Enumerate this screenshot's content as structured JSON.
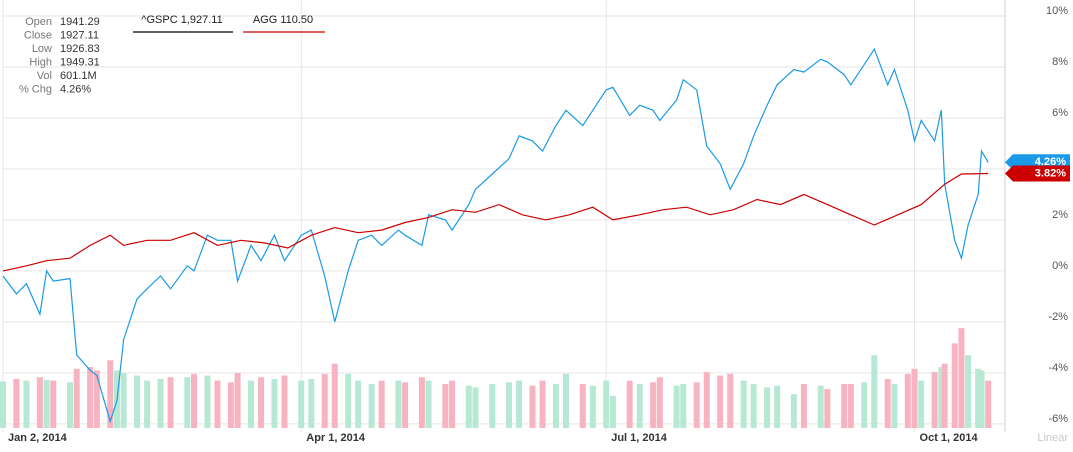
{
  "chart_data": {
    "type": "line",
    "info": [
      {
        "label": "Open",
        "value": "1941.29"
      },
      {
        "label": "Close",
        "value": "1927.11"
      },
      {
        "label": "Low",
        "value": "1926.83"
      },
      {
        "label": "High",
        "value": "1949.31"
      },
      {
        "label": "Vol",
        "value": "601.1M"
      },
      {
        "label": "% Chg",
        "value": "4.26%"
      }
    ],
    "scale_label": "Linear",
    "xlim": [
      "2014-01-02",
      "2014-10-28"
    ],
    "xticks": [
      {
        "value": "2014-01-02",
        "label": "Jan 2, 2014"
      },
      {
        "value": "2014-04-01",
        "label": "Apr 1, 2014"
      },
      {
        "value": "2014-07-01",
        "label": "Jul 1, 2014"
      },
      {
        "value": "2014-10-01",
        "label": "Oct 1, 2014"
      }
    ],
    "ylim": [
      -6.24,
      10.43
    ],
    "yticks": [
      {
        "value": 10,
        "label": "10%"
      },
      {
        "value": 8,
        "label": "8%"
      },
      {
        "value": 6,
        "label": "6%"
      },
      {
        "value": 4,
        "label": "4%"
      },
      {
        "value": 2,
        "label": "2%"
      },
      {
        "value": 0,
        "label": "0%"
      },
      {
        "value": -2,
        "label": "-2%"
      },
      {
        "value": -4,
        "label": "-4%"
      },
      {
        "value": -6,
        "label": "-6%"
      }
    ],
    "grid": true,
    "series": [
      {
        "name": "^GSPC 1,927.11",
        "color": "#1a9ae6",
        "legend_color": "#000000",
        "end_label": "4.26%",
        "x": [
          "2014-01-02",
          "2014-01-06",
          "2014-01-09",
          "2014-01-13",
          "2014-01-15",
          "2014-01-17",
          "2014-01-22",
          "2014-01-24",
          "2014-01-28",
          "2014-01-30",
          "2014-02-03",
          "2014-02-05",
          "2014-02-07",
          "2014-02-11",
          "2014-02-14",
          "2014-02-18",
          "2014-02-21",
          "2014-02-26",
          "2014-02-28",
          "2014-03-04",
          "2014-03-07",
          "2014-03-11",
          "2014-03-13",
          "2014-03-17",
          "2014-03-20",
          "2014-03-24",
          "2014-03-27",
          "2014-04-01",
          "2014-04-04",
          "2014-04-08",
          "2014-04-11",
          "2014-04-15",
          "2014-04-18",
          "2014-04-22",
          "2014-04-25",
          "2014-04-30",
          "2014-05-02",
          "2014-05-07",
          "2014-05-09",
          "2014-05-14",
          "2014-05-16",
          "2014-05-21",
          "2014-05-23",
          "2014-05-28",
          "2014-06-02",
          "2014-06-05",
          "2014-06-09",
          "2014-06-12",
          "2014-06-16",
          "2014-06-19",
          "2014-06-24",
          "2014-06-27",
          "2014-07-01",
          "2014-07-03",
          "2014-07-08",
          "2014-07-11",
          "2014-07-15",
          "2014-07-17",
          "2014-07-22",
          "2014-07-24",
          "2014-07-28",
          "2014-07-31",
          "2014-08-04",
          "2014-08-07",
          "2014-08-11",
          "2014-08-14",
          "2014-08-18",
          "2014-08-21",
          "2014-08-26",
          "2014-08-29",
          "2014-09-03",
          "2014-09-05",
          "2014-09-10",
          "2014-09-12",
          "2014-09-16",
          "2014-09-19",
          "2014-09-23",
          "2014-09-25",
          "2014-09-29",
          "2014-10-01",
          "2014-10-03",
          "2014-10-07",
          "2014-10-09",
          "2014-10-10",
          "2014-10-13",
          "2014-10-15",
          "2014-10-17",
          "2014-10-20",
          "2014-10-21",
          "2014-10-23"
        ],
        "values": [
          -0.2,
          -0.9,
          -0.5,
          -1.7,
          0,
          -0.4,
          -0.3,
          -3.3,
          -3.9,
          -4.1,
          -5.9,
          -5.1,
          -2.7,
          -1.1,
          -0.7,
          -0.2,
          -0.7,
          0.2,
          0,
          1.4,
          1.2,
          1.2,
          -0.4,
          1.0,
          0.4,
          1.4,
          0.4,
          1.4,
          1.6,
          -0.2,
          -2.0,
          0,
          1.2,
          1.4,
          1.0,
          1.6,
          1.4,
          1.0,
          2.2,
          2.0,
          1.6,
          2.6,
          3.2,
          3.8,
          4.4,
          5.3,
          5.1,
          4.7,
          5.7,
          6.3,
          5.7,
          6.3,
          7.1,
          7.2,
          6.1,
          6.5,
          6.3,
          5.9,
          6.7,
          7.5,
          7.1,
          4.9,
          4.2,
          3.2,
          4.2,
          5.3,
          6.5,
          7.3,
          7.9,
          7.8,
          8.3,
          8.2,
          7.7,
          7.3,
          8.1,
          8.7,
          7.3,
          7.9,
          6.3,
          5.1,
          5.9,
          5.1,
          6.3,
          3.4,
          1.2,
          0.5,
          1.8,
          3.0,
          4.7,
          4.26
        ]
      },
      {
        "name": "AGG 110.50",
        "color": "#cc0000",
        "legend_color": "#cc0000",
        "end_label": "3.82%",
        "x": [
          "2014-01-02",
          "2014-01-09",
          "2014-01-15",
          "2014-01-22",
          "2014-01-28",
          "2014-02-03",
          "2014-02-07",
          "2014-02-14",
          "2014-02-21",
          "2014-02-28",
          "2014-03-07",
          "2014-03-14",
          "2014-03-21",
          "2014-03-28",
          "2014-04-04",
          "2014-04-11",
          "2014-04-18",
          "2014-04-25",
          "2014-05-02",
          "2014-05-09",
          "2014-05-16",
          "2014-05-23",
          "2014-05-30",
          "2014-06-06",
          "2014-06-13",
          "2014-06-20",
          "2014-06-27",
          "2014-07-03",
          "2014-07-11",
          "2014-07-18",
          "2014-07-25",
          "2014-08-01",
          "2014-08-08",
          "2014-08-15",
          "2014-08-22",
          "2014-08-29",
          "2014-09-05",
          "2014-09-12",
          "2014-09-19",
          "2014-09-26",
          "2014-10-03",
          "2014-10-10",
          "2014-10-15",
          "2014-10-23"
        ],
        "values": [
          0,
          0.2,
          0.4,
          0.5,
          1.0,
          1.4,
          1.0,
          1.2,
          1.2,
          1.5,
          1.0,
          1.2,
          1.1,
          0.9,
          1.4,
          1.7,
          1.5,
          1.6,
          1.9,
          2.1,
          2.4,
          2.3,
          2.6,
          2.2,
          2.0,
          2.2,
          2.5,
          2.0,
          2.2,
          2.4,
          2.5,
          2.2,
          2.4,
          2.8,
          2.6,
          3.0,
          2.6,
          2.2,
          1.8,
          2.2,
          2.6,
          3.4,
          3.8,
          3.82
        ]
      }
    ],
    "volume": {
      "ylim": [
        0,
        1300
      ],
      "values": [
        550,
        580,
        560,
        600,
        570,
        560,
        540,
        700,
        720,
        680,
        800,
        680,
        650,
        620,
        560,
        580,
        600,
        600,
        640,
        620,
        560,
        540,
        650,
        560,
        600,
        580,
        620,
        560,
        580,
        640,
        760,
        640,
        560,
        520,
        560,
        560,
        540,
        600,
        560,
        520,
        560,
        500,
        480,
        520,
        540,
        560,
        500,
        560,
        520,
        640,
        520,
        500,
        560,
        380,
        560,
        520,
        540,
        600,
        500,
        520,
        540,
        660,
        620,
        640,
        560,
        520,
        480,
        500,
        400,
        520,
        500,
        460,
        520,
        520,
        540,
        860,
        580,
        520,
        640,
        700,
        560,
        660,
        720,
        760,
        1000,
        1180,
        860,
        700,
        680,
        560
      ],
      "colors": [
        "#b7e8d4",
        "#f7b3c0",
        "#b7e8d4",
        "#f7b3c0",
        "#b7e8d4",
        "#f7b3c0",
        "#b7e8d4",
        "#f7b3c0",
        "#f7b3c0",
        "#f7b3c0",
        "#f7b3c0",
        "#b7e8d4",
        "#b7e8d4",
        "#b7e8d4",
        "#b7e8d4",
        "#b7e8d4",
        "#f7b3c0",
        "#b7e8d4",
        "#f7b3c0",
        "#b7e8d4",
        "#f7b3c0",
        "#f7b3c0",
        "#f7b3c0",
        "#b7e8d4",
        "#f7b3c0",
        "#b7e8d4",
        "#f7b3c0",
        "#b7e8d4",
        "#b7e8d4",
        "#f7b3c0",
        "#f7b3c0",
        "#b7e8d4",
        "#b7e8d4",
        "#b7e8d4",
        "#f7b3c0",
        "#b7e8d4",
        "#f7b3c0",
        "#f7b3c0",
        "#b7e8d4",
        "#f7b3c0",
        "#f7b3c0",
        "#b7e8d4",
        "#b7e8d4",
        "#b7e8d4",
        "#b7e8d4",
        "#b7e8d4",
        "#f7b3c0",
        "#f7b3c0",
        "#b7e8d4",
        "#b7e8d4",
        "#f7b3c0",
        "#b7e8d4",
        "#b7e8d4",
        "#b7e8d4",
        "#f7b3c0",
        "#b7e8d4",
        "#f7b3c0",
        "#f7b3c0",
        "#b7e8d4",
        "#b7e8d4",
        "#f7b3c0",
        "#f7b3c0",
        "#f7b3c0",
        "#f7b3c0",
        "#b7e8d4",
        "#b7e8d4",
        "#b7e8d4",
        "#b7e8d4",
        "#b7e8d4",
        "#f7b3c0",
        "#b7e8d4",
        "#f7b3c0",
        "#f7b3c0",
        "#f7b3c0",
        "#b7e8d4",
        "#b7e8d4",
        "#f7b3c0",
        "#b7e8d4",
        "#f7b3c0",
        "#f7b3c0",
        "#b7e8d4",
        "#f7b3c0",
        "#b7e8d4",
        "#f7b3c0",
        "#f7b3c0",
        "#f7b3c0",
        "#b7e8d4",
        "#b7e8d4",
        "#b7e8d4",
        "#f7b3c0"
      ]
    }
  }
}
